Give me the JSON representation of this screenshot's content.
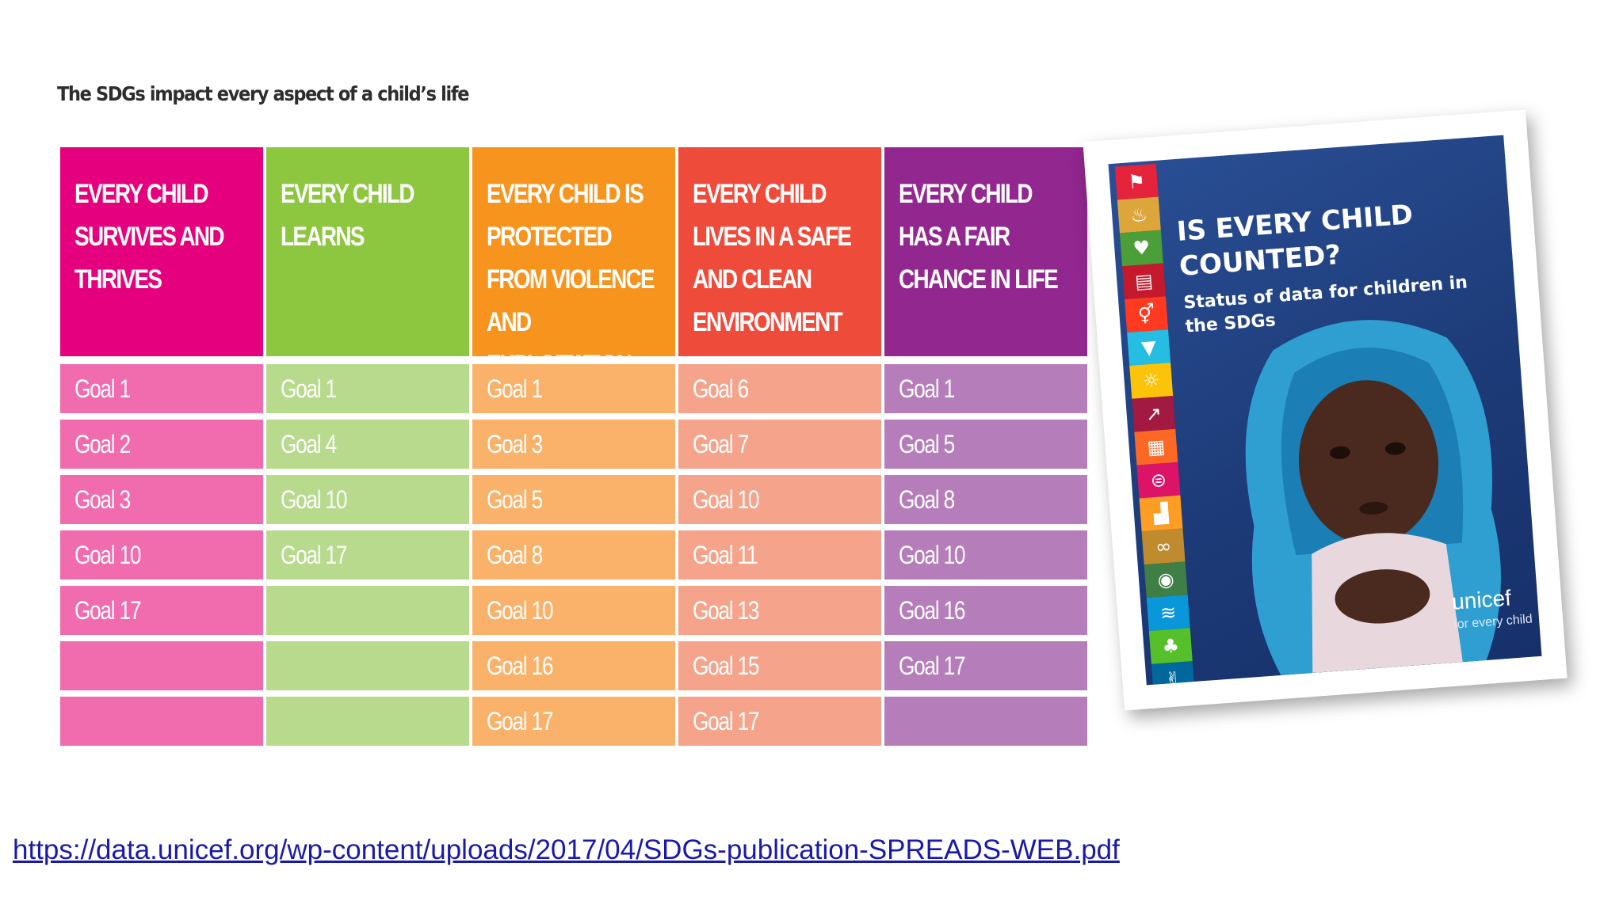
{
  "heading": "The SDGs impact every aspect of a child’s life",
  "columns": [
    {
      "title": "EVERY CHILD SURVIVES AND THRIVES",
      "header_color": "#E5007E",
      "cell_color": "#F06CAE",
      "goals": [
        "Goal 1",
        "Goal 2",
        "Goal 3",
        "Goal 10",
        "Goal 17",
        "",
        ""
      ]
    },
    {
      "title": "EVERY CHILD LEARNS",
      "header_color": "#8DC63F",
      "cell_color": "#B7DA8C",
      "goals": [
        "Goal 1",
        "Goal 4",
        "Goal 10",
        "Goal 17",
        "",
        "",
        ""
      ]
    },
    {
      "title": "EVERY CHILD IS PROTECTED FROM VIOLENCE AND EXPLOITATION",
      "header_color": "#F7941E",
      "cell_color": "#FAB26A",
      "goals": [
        "Goal 1",
        "Goal 3",
        "Goal 5",
        "Goal 8",
        "Goal 10",
        "Goal 16",
        "Goal 17"
      ]
    },
    {
      "title": "EVERY CHILD LIVES IN A SAFE AND CLEAN ENVIRONMENT",
      "header_color": "#EE4B3A",
      "cell_color": "#F5A48B",
      "goals": [
        "Goal 6",
        "Goal 7",
        "Goal 10",
        "Goal 11",
        "Goal 13",
        "Goal 15",
        "Goal 17"
      ]
    },
    {
      "title": "EVERY CHILD HAS A FAIR CHANCE IN LIFE",
      "header_color": "#92278F",
      "cell_color": "#B57DB9",
      "goals": [
        "Goal 1",
        "Goal 5",
        "Goal 8",
        "Goal 10",
        "Goal 16",
        "Goal 17",
        ""
      ]
    }
  ],
  "cover": {
    "title": "IS EVERY CHILD COUNTED?",
    "subtitle": "Status of data for children in the SDGs",
    "logo": "unicef",
    "tagline": "for every child",
    "icon_colors": [
      "#E5243B",
      "#DDA63A",
      "#4C9F38",
      "#C5192D",
      "#FF3A21",
      "#26BDE2",
      "#FCC30B",
      "#A21942",
      "#FD6925",
      "#DD1367",
      "#FD9D24",
      "#BF8B2E",
      "#3F7E44",
      "#0A97D9",
      "#56C02B",
      "#00689D",
      "#19486A"
    ]
  },
  "source_link": "https://data.unicef.org/wp-content/uploads/2017/04/SDGs-publication-SPREADS-WEB.pdf"
}
